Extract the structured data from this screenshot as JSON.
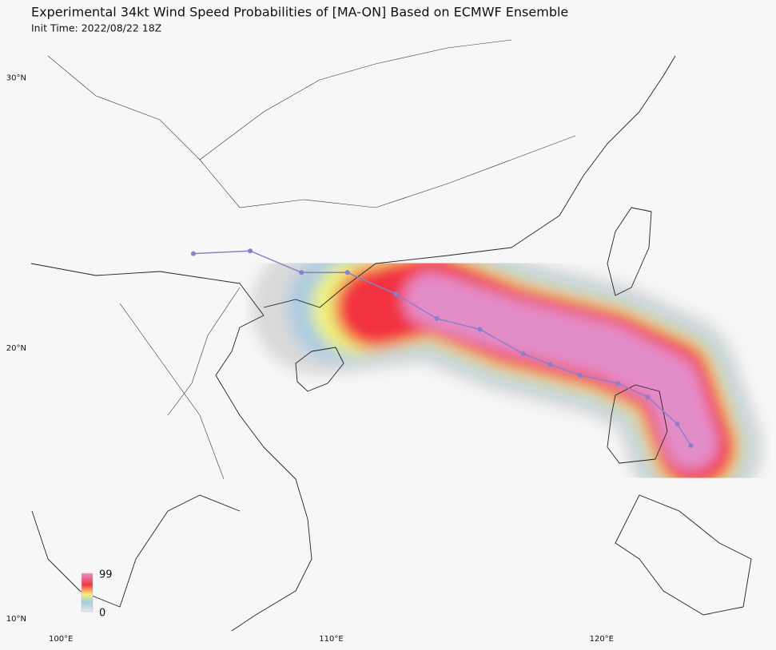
{
  "map": {
    "title": "Experimental 34kt Wind Speed Probabilities of [MA-ON] Based on ECMWF Ensemble",
    "subtitle": "Init Time: 2022/08/22 18Z",
    "xlim": [
      98.9,
      126.45
    ],
    "ylim": [
      9.55,
      31.55
    ],
    "yticks": [
      {
        "value": 30,
        "label": "30°N"
      },
      {
        "value": 20,
        "label": "20°N"
      },
      {
        "value": 10,
        "label": "10°N"
      }
    ],
    "xticks": [
      {
        "value": 100,
        "label": "100°E"
      },
      {
        "value": 110,
        "label": "110°E"
      },
      {
        "value": 120,
        "label": "120°E"
      }
    ],
    "track": {
      "color": "#8a7fcc",
      "lon": [
        104.9,
        107.0,
        108.9,
        110.6,
        112.4,
        113.9,
        115.5,
        117.1,
        118.1,
        119.2,
        120.6,
        121.7,
        122.8,
        123.3
      ],
      "lat": [
        23.5,
        23.6,
        22.8,
        22.8,
        22.0,
        21.1,
        20.7,
        19.8,
        19.4,
        19.0,
        18.7,
        18.2,
        17.2,
        16.4
      ]
    },
    "legend": {
      "max": 99,
      "min": 0
    }
  }
}
